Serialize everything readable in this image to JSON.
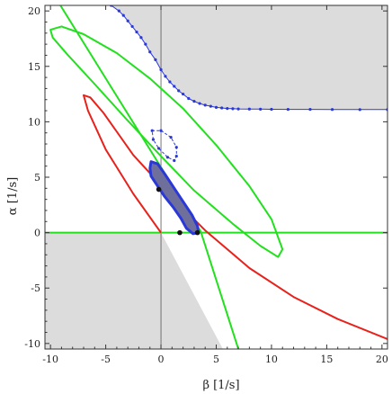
{
  "chart_data": {
    "type": "line",
    "xlabel": "β [1/s]",
    "ylabel": "α [1/s]",
    "xlim": [
      -10.5,
      20.5
    ],
    "ylim": [
      -10.5,
      20.5
    ],
    "xticks": [
      -10,
      -5,
      0,
      5,
      10,
      15,
      20
    ],
    "yticks": [
      -10,
      -5,
      0,
      5,
      10,
      15,
      20
    ],
    "grid": false,
    "colors": {
      "shade": "#dcdcdc",
      "red_curve": "#e8211b",
      "green_curve": "#22e01e",
      "blue_curve": "#2b38d8",
      "blue_region": "#6f6f9c",
      "axis": "#555555"
    },
    "shaded_regions": [
      {
        "points": [
          [
            -10.5,
            0
          ],
          [
            0,
            0
          ],
          [
            5.6,
            -10.5
          ],
          [
            -10.5,
            -10.5
          ]
        ]
      },
      {
        "points": [
          [
            -4.5,
            20.5
          ],
          [
            -3.6,
            19.8
          ],
          [
            -2.0,
            17.9
          ],
          [
            -1.0,
            16.3
          ],
          [
            0.0,
            14.7
          ],
          [
            1.0,
            13.5
          ],
          [
            2.0,
            12.5
          ],
          [
            3.0,
            11.85
          ],
          [
            4.0,
            11.5
          ],
          [
            5.0,
            11.3
          ],
          [
            6.0,
            11.2
          ],
          [
            8.0,
            11.15
          ],
          [
            12.0,
            11.12
          ],
          [
            20.5,
            11.1
          ],
          [
            20.5,
            20.5
          ]
        ]
      }
    ],
    "series": [
      {
        "kind": "line",
        "color": "#22e01e",
        "points": [
          [
            -10.5,
            0
          ],
          [
            20.5,
            0
          ]
        ]
      },
      {
        "kind": "line",
        "color": "#22e01e",
        "points": [
          [
            -9.1,
            20.5
          ],
          [
            0.0,
            5.9
          ],
          [
            3.6,
            0.1
          ],
          [
            7.0,
            -10.5
          ]
        ]
      },
      {
        "kind": "line",
        "color": "#22e01e",
        "closed": true,
        "points": [
          [
            -10.0,
            18.3
          ],
          [
            -9.0,
            18.6
          ],
          [
            -7.0,
            17.9
          ],
          [
            -4.0,
            16.2
          ],
          [
            -1.0,
            13.9
          ],
          [
            2.0,
            11.2
          ],
          [
            5.0,
            7.9
          ],
          [
            8.0,
            4.2
          ],
          [
            10.0,
            1.2
          ],
          [
            11.0,
            -1.5
          ],
          [
            10.6,
            -2.2
          ],
          [
            9.0,
            -1.2
          ],
          [
            6.5,
            0.8
          ],
          [
            3.0,
            3.8
          ],
          [
            0.0,
            6.9
          ],
          [
            -3.0,
            10.1
          ],
          [
            -6.0,
            13.4
          ],
          [
            -8.5,
            16.1
          ],
          [
            -9.8,
            17.6
          ]
        ]
      },
      {
        "kind": "line",
        "color": "#e8211b",
        "points": [
          [
            0,
            0
          ],
          [
            -2.5,
            3.5
          ],
          [
            -5.0,
            7.5
          ],
          [
            -6.6,
            11.0
          ],
          [
            -7.0,
            12.4
          ],
          [
            -6.4,
            12.2
          ],
          [
            -5.2,
            10.8
          ],
          [
            -2.5,
            7.0
          ],
          [
            1.0,
            3.2
          ],
          [
            4.0,
            0.2
          ],
          [
            8.0,
            -3.2
          ],
          [
            12.0,
            -5.8
          ],
          [
            16.0,
            -7.8
          ],
          [
            20.5,
            -9.6
          ]
        ]
      },
      {
        "kind": "line",
        "color": "#2b38d8",
        "markers": true,
        "points": [
          [
            -4.5,
            20.5
          ],
          [
            -3.8,
            20.0
          ],
          [
            -3.4,
            19.6
          ],
          [
            -3.0,
            19.1
          ],
          [
            -2.6,
            18.6
          ],
          [
            -2.2,
            18.1
          ],
          [
            -1.8,
            17.6
          ],
          [
            -1.4,
            17.0
          ],
          [
            -1.0,
            16.3
          ],
          [
            -0.5,
            15.6
          ],
          [
            0.0,
            14.7
          ],
          [
            0.4,
            14.1
          ],
          [
            0.8,
            13.6
          ],
          [
            1.2,
            13.2
          ],
          [
            1.6,
            12.8
          ],
          [
            2.0,
            12.5
          ],
          [
            2.5,
            12.1
          ],
          [
            3.0,
            11.85
          ],
          [
            3.5,
            11.65
          ],
          [
            4.0,
            11.5
          ],
          [
            4.5,
            11.4
          ],
          [
            5.0,
            11.3
          ],
          [
            5.5,
            11.25
          ],
          [
            6.0,
            11.2
          ],
          [
            6.5,
            11.18
          ],
          [
            7.0,
            11.16
          ],
          [
            8.0,
            11.15
          ],
          [
            9.0,
            11.14
          ],
          [
            10.0,
            11.13
          ],
          [
            11.5,
            11.12
          ],
          [
            13.5,
            11.12
          ],
          [
            15.5,
            11.11
          ],
          [
            18.0,
            11.1
          ],
          [
            20.5,
            11.1
          ]
        ]
      },
      {
        "kind": "line",
        "color": "#2b38d8",
        "markers": true,
        "dashed": true,
        "closed": true,
        "points": [
          [
            -0.8,
            9.2
          ],
          [
            0.0,
            9.2
          ],
          [
            0.9,
            8.6
          ],
          [
            1.4,
            7.7
          ],
          [
            1.4,
            6.9
          ],
          [
            1.2,
            6.5
          ],
          [
            0.6,
            6.8
          ],
          [
            -0.2,
            7.6
          ],
          [
            -0.7,
            8.4
          ]
        ]
      },
      {
        "kind": "area",
        "color": "#2b38d8",
        "fill": "#6f6f9c",
        "closed": true,
        "points": [
          [
            -0.9,
            6.4
          ],
          [
            -0.3,
            6.2
          ],
          [
            0.4,
            5.2
          ],
          [
            1.2,
            4.0
          ],
          [
            2.0,
            2.8
          ],
          [
            2.8,
            1.6
          ],
          [
            3.3,
            0.6
          ],
          [
            3.4,
            0.0
          ],
          [
            2.9,
            -0.1
          ],
          [
            2.3,
            0.4
          ],
          [
            1.8,
            1.3
          ],
          [
            1.1,
            2.3
          ],
          [
            0.3,
            3.3
          ],
          [
            -0.3,
            4.2
          ],
          [
            -0.9,
            5.1
          ],
          [
            -1.0,
            5.8
          ]
        ]
      },
      {
        "kind": "scatter",
        "color": "#111111",
        "points": [
          [
            -0.2,
            3.9
          ],
          [
            1.7,
            0.0
          ],
          [
            3.3,
            0.0
          ]
        ]
      }
    ]
  }
}
